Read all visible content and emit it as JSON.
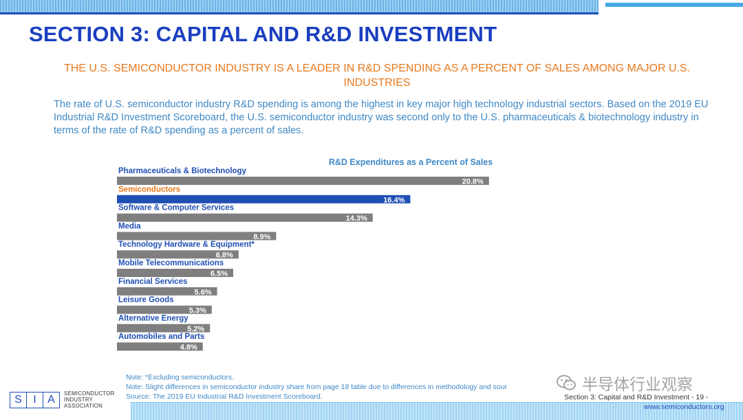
{
  "header": {
    "title": "SECTION 3: CAPITAL AND R&D INVESTMENT",
    "subtitle": "THE U.S. SEMICONDUCTOR INDUSTRY IS A LEADER IN R&D SPENDING AS A PERCENT OF SALES AMONG MAJOR U.S. INDUSTRIES",
    "body": "The rate of U.S. semiconductor industry R&D spending is among the highest in key major high technology industrial sectors. Based on the 2019 EU Industrial R&D Investment Scoreboard, the U.S. semiconductor industry was second only to the U.S. pharmaceuticals & biotechnology industry in terms of the rate of R&D spending as a percent of sales."
  },
  "chart_data": {
    "type": "bar",
    "orientation": "horizontal",
    "title": "R&D Expenditures as a Percent of Sales",
    "categories": [
      "Pharmaceuticals & Biotechnology",
      "Semiconductors",
      "Software & Computer Services",
      "Media",
      "Technology Hardware & Equipment*",
      "Mobile Telecommunications",
      "Financial Services",
      "Leisure Goods",
      "Alternative Energy",
      "Automobiles and Parts"
    ],
    "values": [
      20.8,
      16.4,
      14.3,
      8.9,
      6.8,
      6.5,
      5.6,
      5.3,
      5.2,
      4.8
    ],
    "value_labels": [
      "20.8%",
      "16.4%",
      "14.3%",
      "8.9%",
      "6.8%",
      "6.5%",
      "5.6%",
      "5.3%",
      "5.2%",
      "4.8%"
    ],
    "highlight_index": 1,
    "colors": {
      "bar": "#7f7f7f",
      "highlight_bar": "#1f4fb3",
      "label": "#1f4fb3",
      "highlight_label": "#e8791e",
      "title": "#3f88c5"
    },
    "xlim": [
      0,
      22
    ]
  },
  "notes": {
    "line1": "Note: *Excluding semiconductors.",
    "line2": "Note: Slight differences in semiconductor industry share from page 18 table due to differences in methodology and sour",
    "line3": "Source: The 2019 EU Industrial R&D Investment Scoreboard."
  },
  "footer": {
    "logo_letters": [
      "S",
      "I",
      "A"
    ],
    "logo_line1": "SEMICONDUCTOR",
    "logo_line2": "INDUSTRY",
    "logo_line3": "ASSOCIATION",
    "section": "Section 3: Capital and R&D Investment - 19 -",
    "url": "www.semiconductors.org",
    "watermark": "半导体行业观察"
  }
}
